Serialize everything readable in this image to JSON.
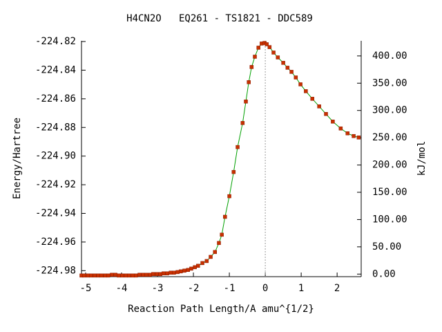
{
  "chart_data": {
    "type": "line",
    "title": "H4CN2O   EQ261 - TS1821 - DDC589",
    "xlabel": "Reaction Path Length/A amu^{1/2}",
    "ylabel": "Energy/Hartree",
    "y2label": "kJ/mol",
    "xlim": [
      -5.115,
      2.67
    ],
    "xticks": [
      -5,
      -4,
      -3,
      -2,
      -1,
      0,
      1,
      2
    ],
    "ylim": [
      -224.9842,
      -224.8195
    ],
    "yticks": [
      -224.98,
      -224.96,
      -224.94,
      -224.92,
      {
        "value": -224.9,
        "label": "-224.90"
      },
      -224.88,
      -224.86,
      -224.84,
      -224.82
    ],
    "y2lim": [
      -4.7,
      427.7
    ],
    "y2ticks": [
      {
        "value": 0,
        "label": "0.00"
      },
      {
        "value": 50,
        "label": "50.00"
      },
      {
        "value": 100,
        "label": "100.00"
      },
      {
        "value": 150,
        "label": "150.00"
      },
      {
        "value": 200,
        "label": "200.00"
      },
      {
        "value": 250,
        "label": "250.00"
      },
      {
        "value": 300,
        "label": "300.00"
      },
      {
        "value": 350,
        "label": "350.00"
      },
      {
        "value": 400,
        "label": "400.00"
      }
    ],
    "vline": 0,
    "series": [
      {
        "color": "#00a000",
        "marker_color": "#c83000",
        "x": [
          -5.115,
          -5.04,
          -4.94,
          -4.85,
          -4.75,
          -4.65,
          -4.56,
          -4.46,
          -4.37,
          -4.27,
          -4.17,
          -4.08,
          -3.98,
          -3.88,
          -3.79,
          -3.69,
          -3.6,
          -3.5,
          -3.4,
          -3.31,
          -3.21,
          -3.12,
          -3.02,
          -2.92,
          -2.83,
          -2.73,
          -2.63,
          -2.54,
          -2.44,
          -2.35,
          -2.25,
          -2.15,
          -2.06,
          -1.96,
          -1.87,
          -1.75,
          -1.63,
          -1.52,
          -1.4,
          -1.29,
          -1.21,
          -1.12,
          -1.0,
          -0.88,
          -0.77,
          -0.63,
          -0.54,
          -0.46,
          -0.38,
          -0.29,
          -0.19,
          -0.1,
          -0.02,
          0.04,
          0.12,
          0.23,
          0.35,
          0.5,
          0.62,
          0.73,
          0.85,
          0.98,
          1.13,
          1.31,
          1.5,
          1.69,
          1.88,
          2.1,
          2.29,
          2.46,
          2.6
        ],
        "values": [
          -224.9834,
          -224.9834,
          -224.9834,
          -224.9834,
          -224.9834,
          -224.9834,
          -224.9834,
          -224.9834,
          -224.9834,
          -224.9829,
          -224.9829,
          -224.9834,
          -224.9834,
          -224.9834,
          -224.9834,
          -224.9834,
          -224.9834,
          -224.9829,
          -224.9829,
          -224.9829,
          -224.9829,
          -224.9824,
          -224.9824,
          -224.9824,
          -224.9819,
          -224.9819,
          -224.9814,
          -224.9814,
          -224.981,
          -224.9805,
          -224.98,
          -224.9795,
          -224.9786,
          -224.9776,
          -224.9766,
          -224.9747,
          -224.9733,
          -224.9704,
          -224.967,
          -224.9607,
          -224.9549,
          -224.9424,
          -224.928,
          -224.9111,
          -224.8937,
          -224.8769,
          -224.8619,
          -224.8484,
          -224.8378,
          -224.8306,
          -224.8243,
          -224.8214,
          -224.821,
          -224.8219,
          -224.8239,
          -224.8277,
          -224.8311,
          -224.8349,
          -224.8383,
          -224.8412,
          -224.8451,
          -224.8499,
          -224.8547,
          -224.86,
          -224.8653,
          -224.8706,
          -224.8759,
          -224.8807,
          -224.8841,
          -224.886,
          -224.887
        ]
      }
    ]
  }
}
